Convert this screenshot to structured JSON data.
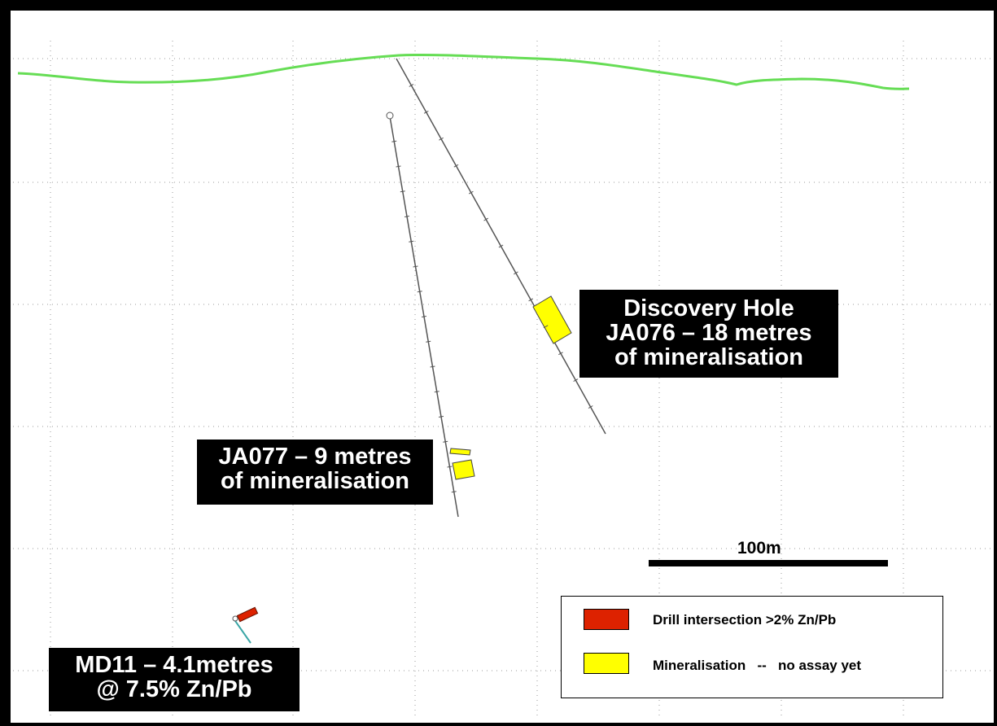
{
  "colors": {
    "topography": "#66dd55",
    "grid": "#9a9a9a",
    "drill_trace": "#555555",
    "mineralisation": "#ffff00",
    "intersection": "#dd2200",
    "callout_bg": "#000000",
    "callout_text": "#ffffff"
  },
  "callouts": {
    "ja076": {
      "line1": "Discovery Hole",
      "line2": "JA076 – 18 metres",
      "line3": "of mineralisation"
    },
    "ja077": {
      "line1": "JA077 – 9 metres",
      "line2": "of mineralisation"
    },
    "md11": {
      "line1": "MD11 – 4.1metres",
      "line2": "@ 7.5% Zn/Pb"
    }
  },
  "scale": {
    "label": "100m"
  },
  "legend": {
    "items": [
      {
        "label": "Drill intersection >2% Zn/Pb",
        "color": "#dd2200"
      },
      {
        "label": "Mineralisation   --   no assay yet",
        "color": "#ffff00"
      }
    ]
  }
}
